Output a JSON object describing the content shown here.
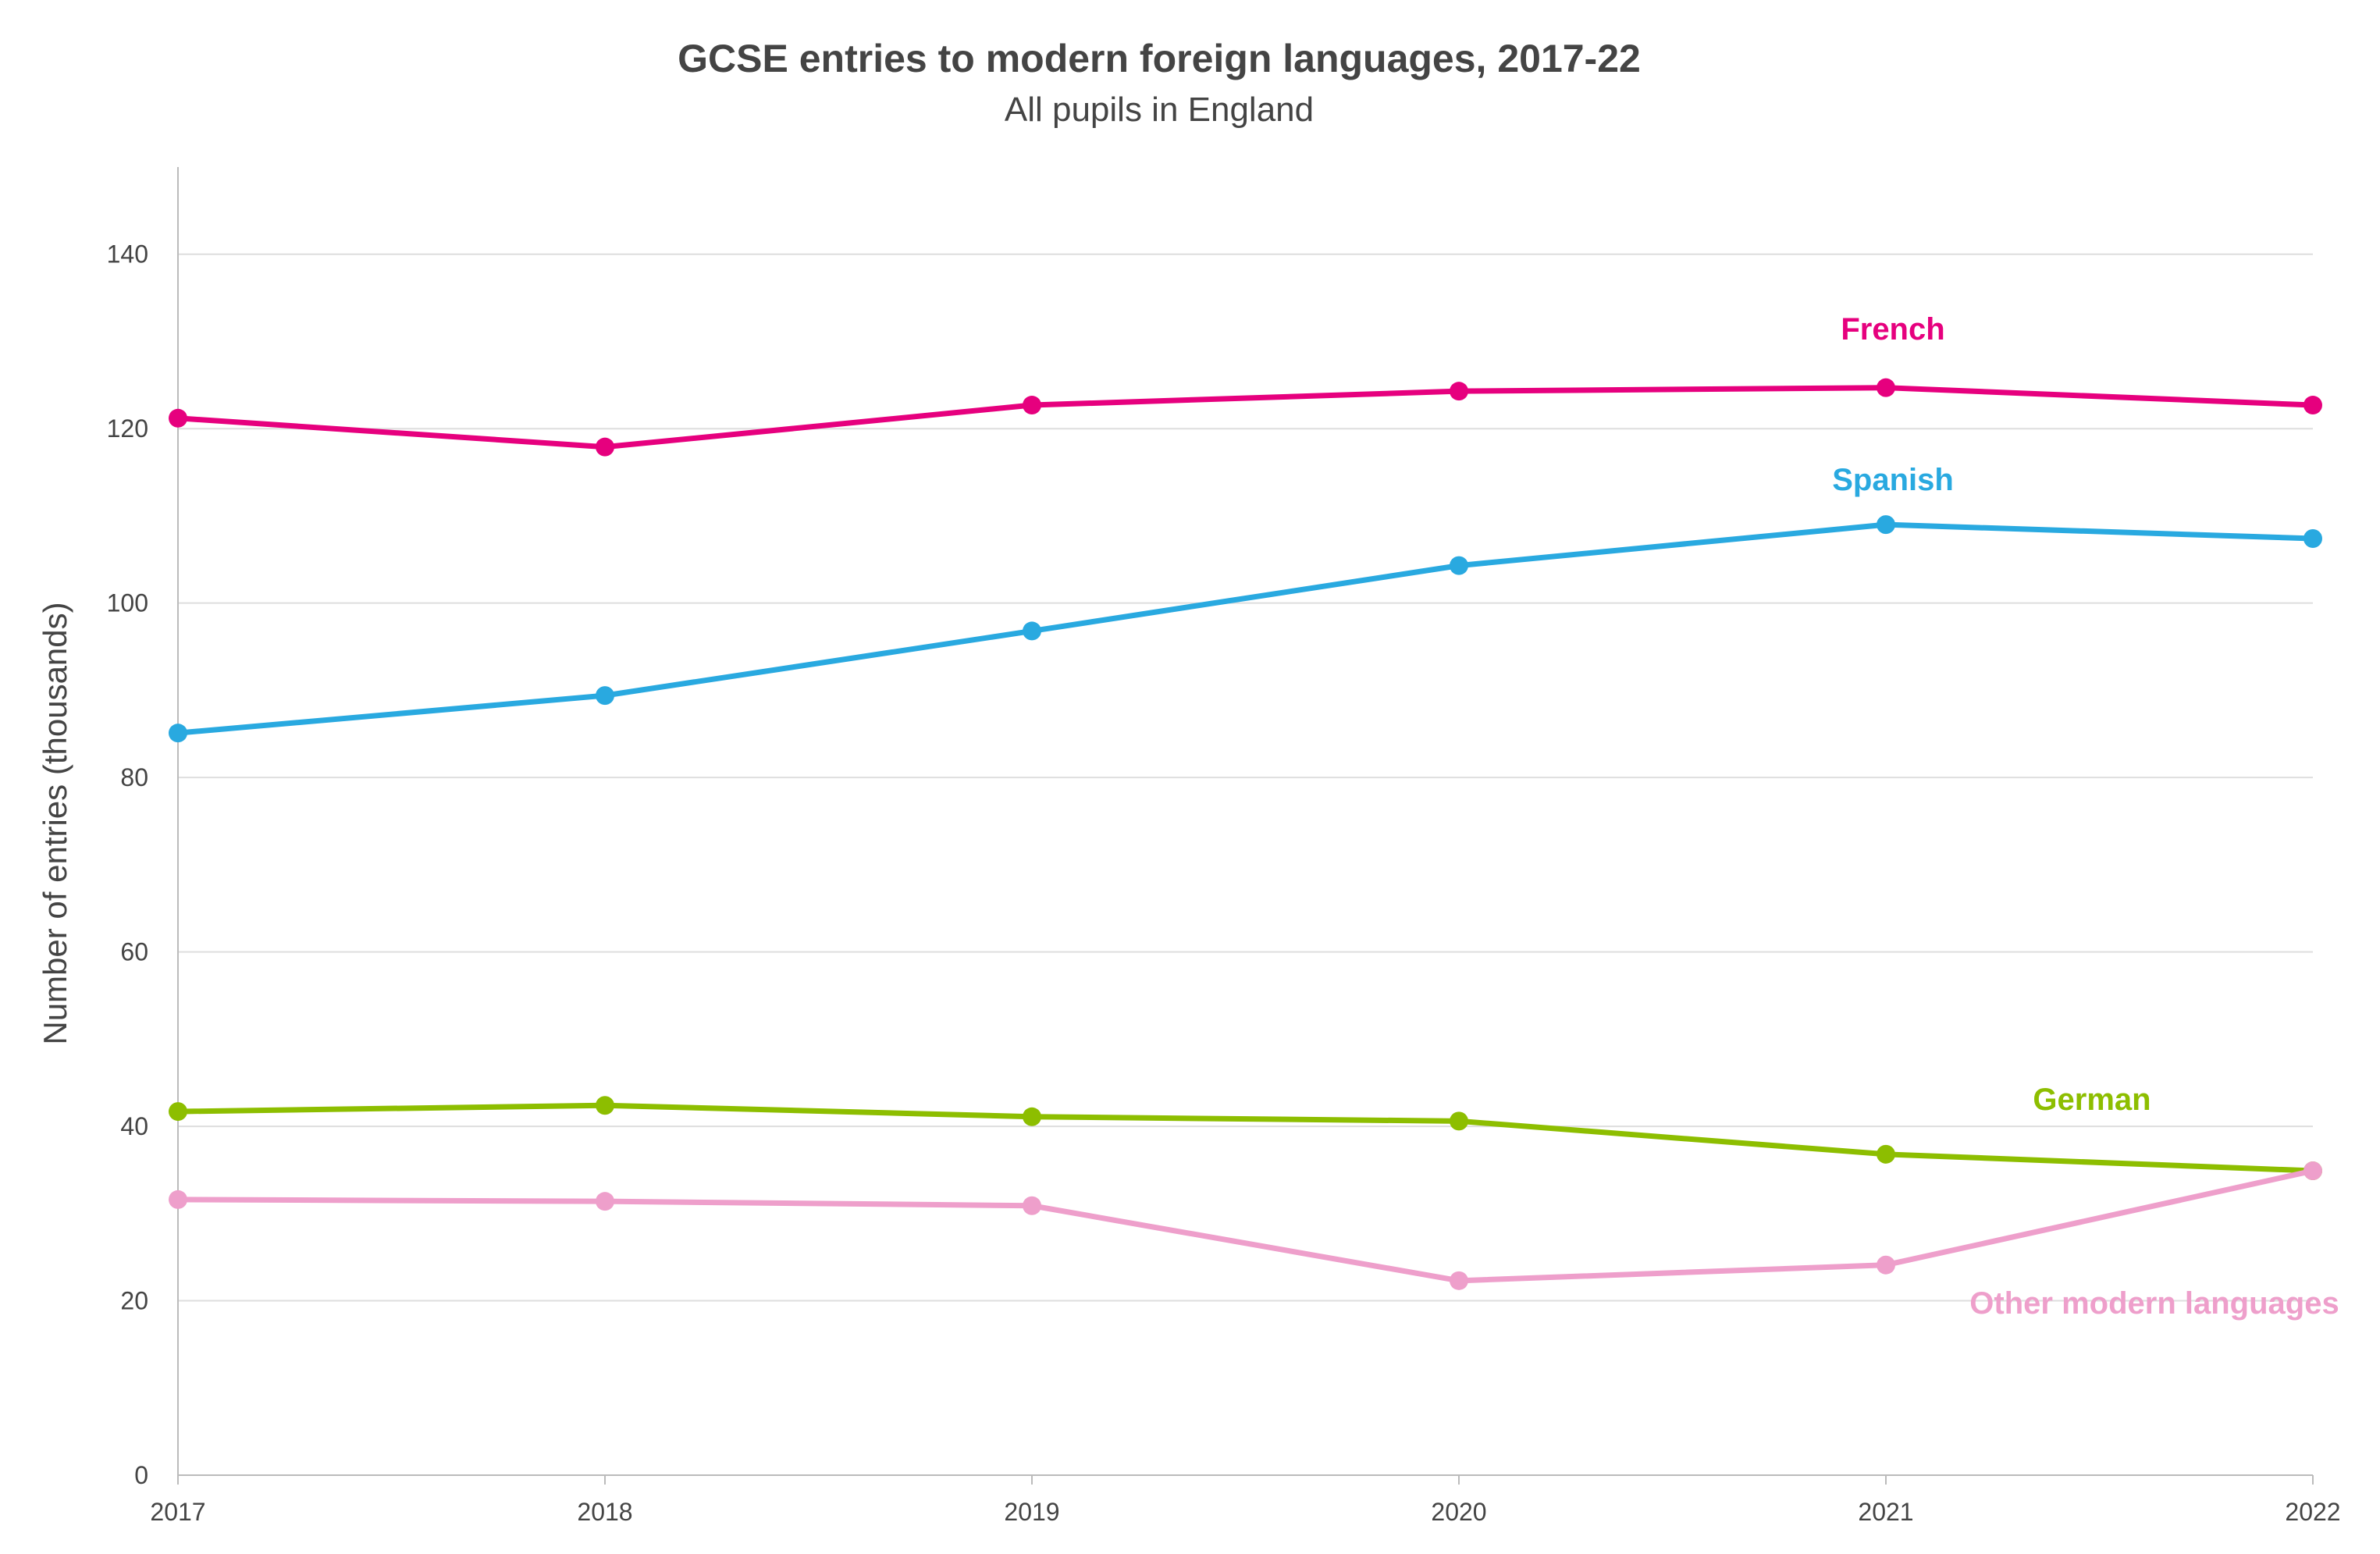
{
  "chart_data": {
    "type": "line",
    "title": "GCSE entries to modern foreign languages, 2017-22",
    "subtitle": "All pupils in England",
    "xlabel": "",
    "ylabel": "Number of entries (thousands)",
    "x": [
      "2017",
      "2018",
      "2019",
      "2020",
      "2021",
      "2022"
    ],
    "ylim": [
      0,
      150
    ],
    "yticks": [
      0,
      20,
      40,
      60,
      80,
      100,
      120,
      140
    ],
    "grid": true,
    "legend": "direct labels",
    "series": [
      {
        "name": "French",
        "color": "#E6007E",
        "values": [
          121.2,
          117.9,
          122.7,
          124.3,
          124.7,
          122.7
        ]
      },
      {
        "name": "Spanish",
        "color": "#29A9E0",
        "values": [
          85.1,
          89.4,
          96.8,
          104.3,
          109.0,
          107.4
        ]
      },
      {
        "name": "German",
        "color": "#8DBE00",
        "values": [
          41.7,
          42.4,
          41.1,
          40.6,
          36.8,
          34.9
        ]
      },
      {
        "name": "Other modern languages",
        "color": "#EE9FCB",
        "values": [
          31.6,
          31.4,
          30.9,
          22.3,
          24.1,
          34.9
        ]
      }
    ]
  }
}
